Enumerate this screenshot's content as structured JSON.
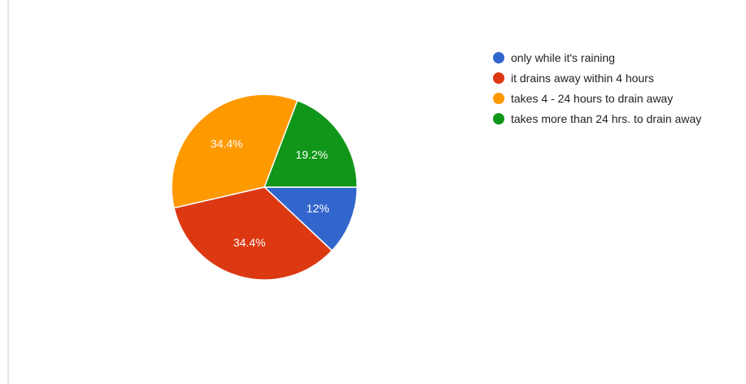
{
  "chart_data": {
    "type": "pie",
    "title": "",
    "categories": [
      "only while it's raining",
      "it drains away within 4 hours",
      "takes 4 - 24 hours to drain away",
      "takes more than 24 hrs. to drain away"
    ],
    "values": [
      12,
      34.4,
      34.4,
      19.2
    ],
    "labels": [
      "12%",
      "34.4%",
      "34.4%",
      "19.2%"
    ],
    "colors": [
      "#3366cc",
      "#dc3912",
      "#ff9900",
      "#109618"
    ],
    "label_color": "#ffffff",
    "legend_position": "right",
    "start_angle": "3 o'clock, clockwise"
  }
}
